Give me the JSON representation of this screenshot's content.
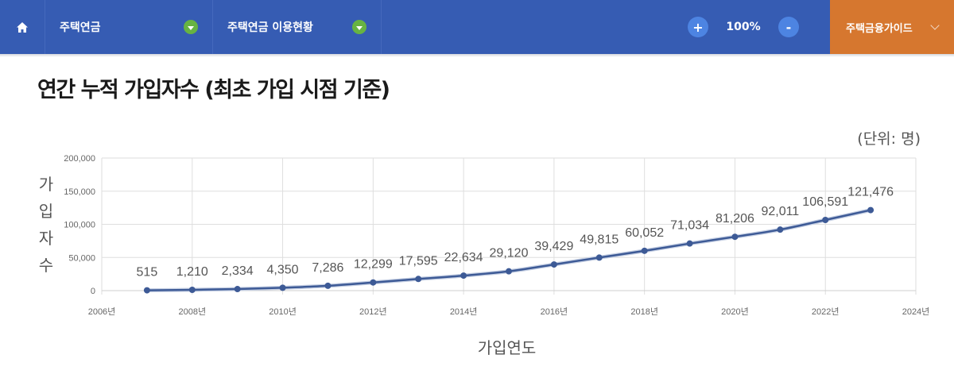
{
  "topbar": {
    "home_icon": "home-icon",
    "menu1": "주택연금",
    "menu2": "주택연금 이용현황",
    "zoom_in": "+",
    "zoom_level": "100%",
    "zoom_out": "-",
    "guide": "주택금융가이드"
  },
  "colors": {
    "topbar": "#365cb3",
    "dropdown": "#67b342",
    "zoom_button": "#4d84e2",
    "guide": "#d6772f",
    "line": "#3d5a96"
  },
  "page": {
    "title": "연간 누적 가입자수 (최초 가입 시점 기준)",
    "unit": "(단위: 명)",
    "ylabel": "가입자수",
    "xlabel": "가입연도"
  },
  "chart_data": {
    "type": "line",
    "title": "연간 누적 가입자수 (최초 가입 시점 기준)",
    "xlabel": "가입연도",
    "ylabel": "가입자수",
    "unit": "명",
    "x": [
      2007,
      2008,
      2009,
      2010,
      2011,
      2012,
      2013,
      2014,
      2015,
      2016,
      2017,
      2018,
      2019,
      2020,
      2021,
      2022,
      2023
    ],
    "values": [
      515,
      1210,
      2334,
      4350,
      7286,
      12299,
      17595,
      22634,
      29120,
      39429,
      49815,
      60052,
      71034,
      81206,
      92011,
      106591,
      121476
    ],
    "labels": [
      "515",
      "1,210",
      "2,334",
      "4,350",
      "7,286",
      "12,299",
      "17,595",
      "22,634",
      "29,120",
      "39,429",
      "49,815",
      "60,052",
      "71,034",
      "81,206",
      "92,011",
      "106,591",
      "121,476"
    ],
    "xlim": [
      2006,
      2024
    ],
    "ylim": [
      0,
      200000
    ],
    "xticks": [
      "2006년",
      "2008년",
      "2010년",
      "2012년",
      "2014년",
      "2016년",
      "2018년",
      "2020년",
      "2022년",
      "2024년"
    ],
    "yticks": [
      "0",
      "50,000",
      "100,000",
      "150,000",
      "200,000"
    ],
    "grid": true,
    "legend": "none"
  }
}
